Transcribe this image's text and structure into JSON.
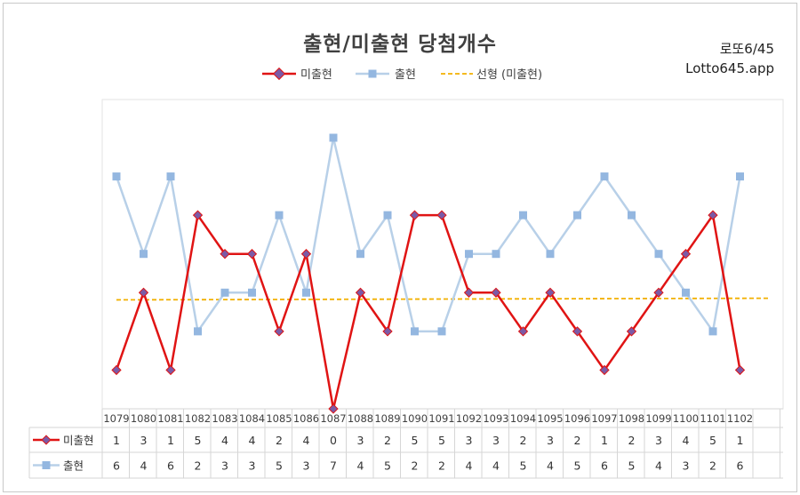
{
  "header": {
    "title": "출현/미출현 당첨개수",
    "brand_line1": "로또6/45",
    "brand_line2": "Lotto645.app"
  },
  "legend": {
    "missing": "미출현",
    "appeared": "출현",
    "trend": "선형 (미출현)"
  },
  "colors": {
    "missing": "#e01414",
    "missing_marker": "#7b5aa6",
    "appeared": "#b8d0e8",
    "appeared_marker": "#94b7e0",
    "trend": "#f2b000"
  },
  "chart_data": {
    "type": "line",
    "categories": [
      "1079",
      "1080",
      "1081",
      "1082",
      "1083",
      "1084",
      "1085",
      "1086",
      "1087",
      "1088",
      "1089",
      "1090",
      "1091",
      "1092",
      "1093",
      "1094",
      "1095",
      "1096",
      "1097",
      "1098",
      "1099",
      "1100",
      "1101",
      "1102"
    ],
    "series": [
      {
        "name": "미출현",
        "values": [
          1,
          3,
          1,
          5,
          4,
          4,
          2,
          4,
          0,
          3,
          2,
          5,
          5,
          3,
          3,
          2,
          3,
          2,
          1,
          2,
          3,
          4,
          5,
          1
        ]
      },
      {
        "name": "출현",
        "values": [
          6,
          4,
          6,
          2,
          3,
          3,
          5,
          3,
          7,
          4,
          5,
          2,
          2,
          4,
          4,
          5,
          4,
          5,
          6,
          5,
          4,
          3,
          2,
          6
        ]
      }
    ],
    "trendline": {
      "name": "선형 (미출현)",
      "of": "미출현",
      "type": "linear"
    },
    "ylim": [
      0,
      7
    ],
    "grid": false,
    "legend_position": "top",
    "data_table": true
  }
}
